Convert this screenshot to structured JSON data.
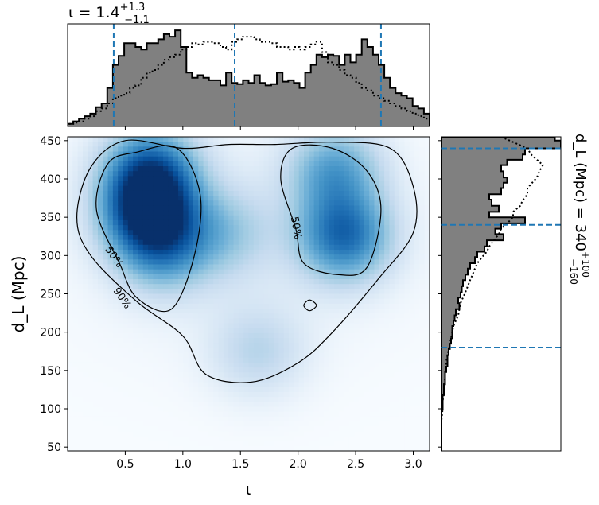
{
  "chart_data": {
    "type": "corner-plot",
    "main_panel": {
      "type": "heatmap",
      "colormap": "Blues",
      "xlabel": "ι",
      "ylabel": "d_L (Mpc)",
      "xlim": [
        0.0,
        3.1416
      ],
      "ylim": [
        45,
        455
      ],
      "xticks": [
        "0.5",
        "1.0",
        "1.5",
        "2.0",
        "2.5",
        "3.0"
      ],
      "yticks": [
        "50",
        "100",
        "150",
        "200",
        "250",
        "300",
        "350",
        "400",
        "450"
      ],
      "density_peaks": [
        {
          "x": 0.7,
          "y": 360,
          "weight": 1.0
        },
        {
          "x": 0.72,
          "y": 412,
          "weight": 0.75
        },
        {
          "x": 0.82,
          "y": 310,
          "weight": 0.55
        },
        {
          "x": 2.4,
          "y": 325,
          "weight": 0.8
        },
        {
          "x": 2.32,
          "y": 410,
          "weight": 0.55
        },
        {
          "x": 1.65,
          "y": 175,
          "weight": 0.25
        },
        {
          "x": 1.35,
          "y": 330,
          "weight": 0.3
        }
      ],
      "contours": [
        {
          "level": "90%",
          "points": [
            [
              0.08,
              350
            ],
            [
              0.2,
              415
            ],
            [
              0.5,
              450
            ],
            [
              1.0,
              440
            ],
            [
              1.4,
              445
            ],
            [
              1.8,
              445
            ],
            [
              2.3,
              448
            ],
            [
              2.8,
              440
            ],
            [
              3.0,
              390
            ],
            [
              3.0,
              330
            ],
            [
              2.7,
              270
            ],
            [
              2.3,
              200
            ],
            [
              2.0,
              160
            ],
            [
              1.6,
              135
            ],
            [
              1.2,
              145
            ],
            [
              1.0,
              195
            ],
            [
              0.6,
              240
            ],
            [
              0.2,
              300
            ]
          ]
        },
        {
          "level": "50%",
          "points": [
            [
              0.25,
              360
            ],
            [
              0.35,
              420
            ],
            [
              0.6,
              435
            ],
            [
              0.95,
              440
            ],
            [
              1.15,
              380
            ],
            [
              1.1,
              300
            ],
            [
              0.9,
              230
            ],
            [
              0.6,
              245
            ],
            [
              0.45,
              290
            ]
          ]
        },
        {
          "level": "50%",
          "points": [
            [
              1.85,
              400
            ],
            [
              1.95,
              440
            ],
            [
              2.3,
              440
            ],
            [
              2.6,
              410
            ],
            [
              2.72,
              360
            ],
            [
              2.6,
              285
            ],
            [
              2.35,
              275
            ],
            [
              2.05,
              290
            ],
            [
              1.98,
              335
            ]
          ]
        },
        {
          "level": "",
          "points": [
            [
              2.05,
              235
            ],
            [
              2.1,
              242
            ],
            [
              2.16,
              235
            ],
            [
              2.1,
              228
            ]
          ]
        }
      ],
      "contour_labels": [
        {
          "text": "50%",
          "x": 0.4,
          "y": 298,
          "angle": 55
        },
        {
          "text": "90%",
          "x": 0.47,
          "y": 244,
          "angle": 55
        },
        {
          "text": "50%",
          "x": 1.98,
          "y": 336,
          "angle": 80
        }
      ]
    },
    "top_panel": {
      "type": "histogram",
      "title": "ι = 1.4",
      "title_sup": "+1.3",
      "title_sub": "−1.1",
      "xlim": [
        0.0,
        3.1416
      ],
      "bin_edges_range": [
        0.0,
        3.1416
      ],
      "series": [
        {
          "name": "",
          "style": "filled-gray-stepped",
          "values": [
            2,
            4,
            6,
            8,
            10,
            15,
            18,
            30,
            48,
            55,
            65,
            65,
            62,
            60,
            65,
            65,
            68,
            72,
            70,
            75,
            62,
            42,
            38,
            40,
            38,
            36,
            36,
            32,
            42,
            34,
            33,
            36,
            34,
            40,
            34,
            32,
            33,
            42,
            35,
            36,
            34,
            30,
            42,
            48,
            56,
            54,
            56,
            55,
            48,
            56,
            50,
            56,
            68,
            62,
            56,
            48,
            38,
            30,
            26,
            24,
            22,
            16,
            14,
            10
          ]
        },
        {
          "name": "",
          "style": "dotted-stepped",
          "values": [
            2,
            3,
            4,
            6,
            8,
            12,
            14,
            18,
            22,
            24,
            26,
            30,
            32,
            38,
            42,
            44,
            48,
            52,
            54,
            56,
            60,
            62,
            65,
            64,
            66,
            66,
            65,
            62,
            60,
            66,
            68,
            70,
            70,
            68,
            66,
            66,
            65,
            62,
            62,
            60,
            62,
            60,
            62,
            64,
            66,
            58,
            50,
            48,
            44,
            40,
            38,
            34,
            30,
            28,
            24,
            22,
            20,
            18,
            16,
            14,
            12,
            10,
            8,
            6
          ]
        }
      ],
      "credible_interval_lines": [
        0.4,
        1.45,
        2.72
      ]
    },
    "right_panel": {
      "type": "histogram",
      "orientation": "horizontal",
      "ylim": [
        45,
        455
      ],
      "side_label": "d_L (Mpc) = 340",
      "side_label_sup": "+100",
      "side_label_sub": "−160",
      "series": [
        {
          "name": "",
          "style": "filled-gray-stepped",
          "bins": [
            [
              450,
              455,
              95
            ],
            [
              440,
              450,
              100
            ],
            [
              432,
              440,
              70
            ],
            [
              425,
              432,
              68
            ],
            [
              418,
              425,
              55
            ],
            [
              410,
              418,
              50
            ],
            [
              402,
              410,
              52
            ],
            [
              395,
              402,
              55
            ],
            [
              388,
              395,
              52
            ],
            [
              380,
              388,
              50
            ],
            [
              373,
              380,
              40
            ],
            [
              365,
              373,
              42
            ],
            [
              357,
              365,
              48
            ],
            [
              350,
              357,
              40
            ],
            [
              342,
              350,
              70
            ],
            [
              335,
              342,
              50
            ],
            [
              328,
              335,
              45
            ],
            [
              320,
              328,
              52
            ],
            [
              312,
              320,
              38
            ],
            [
              305,
              312,
              36
            ],
            [
              298,
              305,
              30
            ],
            [
              290,
              298,
              28
            ],
            [
              283,
              290,
              24
            ],
            [
              275,
              283,
              22
            ],
            [
              268,
              275,
              20
            ],
            [
              260,
              268,
              18
            ],
            [
              252,
              260,
              17
            ],
            [
              245,
              252,
              16
            ],
            [
              238,
              245,
              14
            ],
            [
              230,
              238,
              15
            ],
            [
              222,
              230,
              12
            ],
            [
              215,
              222,
              11
            ],
            [
              208,
              215,
              10
            ],
            [
              200,
              208,
              9
            ],
            [
              192,
              200,
              9
            ],
            [
              185,
              192,
              8
            ],
            [
              178,
              185,
              7
            ],
            [
              170,
              178,
              6
            ],
            [
              162,
              170,
              5
            ],
            [
              155,
              162,
              5
            ],
            [
              148,
              155,
              4
            ],
            [
              140,
              148,
              3
            ],
            [
              132,
              140,
              3
            ],
            [
              125,
              132,
              2
            ],
            [
              118,
              125,
              2
            ],
            [
              110,
              118,
              1
            ],
            [
              100,
              110,
              1
            ],
            [
              90,
              100,
              0
            ],
            [
              80,
              90,
              0
            ],
            [
              70,
              80,
              0
            ],
            [
              45,
              70,
              0
            ]
          ]
        },
        {
          "name": "",
          "style": "dotted-outline",
          "points": [
            [
              455,
              50
            ],
            [
              448,
              60
            ],
            [
              440,
              72
            ],
            [
              432,
              75
            ],
            [
              425,
              80
            ],
            [
              418,
              85
            ],
            [
              410,
              82
            ],
            [
              402,
              80
            ],
            [
              395,
              76
            ],
            [
              388,
              72
            ],
            [
              380,
              72
            ],
            [
              372,
              68
            ],
            [
              365,
              66
            ],
            [
              357,
              60
            ],
            [
              350,
              60
            ],
            [
              342,
              55
            ],
            [
              335,
              50
            ],
            [
              328,
              48
            ],
            [
              320,
              44
            ],
            [
              312,
              40
            ],
            [
              305,
              38
            ],
            [
              298,
              34
            ],
            [
              290,
              30
            ],
            [
              283,
              28
            ],
            [
              275,
              26
            ],
            [
              268,
              24
            ],
            [
              260,
              22
            ],
            [
              252,
              20
            ],
            [
              245,
              18
            ],
            [
              238,
              16
            ],
            [
              230,
              15
            ],
            [
              222,
              14
            ],
            [
              215,
              12
            ],
            [
              208,
              10
            ],
            [
              200,
              9
            ],
            [
              192,
              8
            ],
            [
              185,
              7
            ],
            [
              178,
              6
            ],
            [
              170,
              5
            ],
            [
              162,
              4
            ],
            [
              155,
              4
            ],
            [
              148,
              3
            ],
            [
              140,
              3
            ],
            [
              130,
              2
            ],
            [
              120,
              2
            ],
            [
              110,
              1
            ],
            [
              100,
              1
            ],
            [
              85,
              0
            ],
            [
              70,
              0
            ],
            [
              50,
              0
            ]
          ]
        }
      ],
      "xlim": [
        0,
        100
      ],
      "credible_interval_lines": [
        180,
        340,
        440
      ]
    },
    "colors": {
      "hist_fill": "#808080",
      "hist_edge": "#000000",
      "interval_line": "#1f77b4",
      "contour": "#000000"
    }
  }
}
